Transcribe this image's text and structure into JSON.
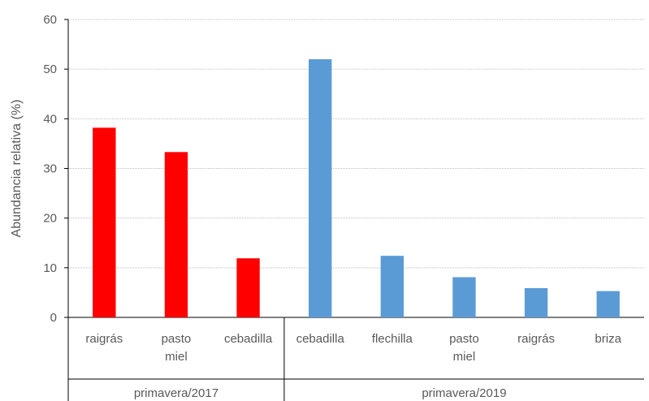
{
  "chart_data": {
    "type": "bar",
    "ylabel": "Abundancia relativa (%)",
    "ylim": [
      0,
      60
    ],
    "yticks": [
      "0",
      "10",
      "20",
      "30",
      "40",
      "50",
      "60"
    ],
    "grid": true,
    "groups": [
      {
        "label": "primavera/2017",
        "color": "#ff0000",
        "bars": [
          {
            "category": [
              "raigrás"
            ],
            "value": 38.2
          },
          {
            "category": [
              "pasto",
              "miel"
            ],
            "value": 33.3
          },
          {
            "category": [
              "cebadilla"
            ],
            "value": 11.9
          }
        ]
      },
      {
        "label": "primavera/2019",
        "color": "#5b9bd5",
        "bars": [
          {
            "category": [
              "cebadilla"
            ],
            "value": 52.0
          },
          {
            "category": [
              "flechilla"
            ],
            "value": 12.4
          },
          {
            "category": [
              "pasto",
              "miel"
            ],
            "value": 8.1
          },
          {
            "category": [
              "raigrás"
            ],
            "value": 5.9
          },
          {
            "category": [
              "briza"
            ],
            "value": 5.3
          }
        ]
      }
    ]
  }
}
